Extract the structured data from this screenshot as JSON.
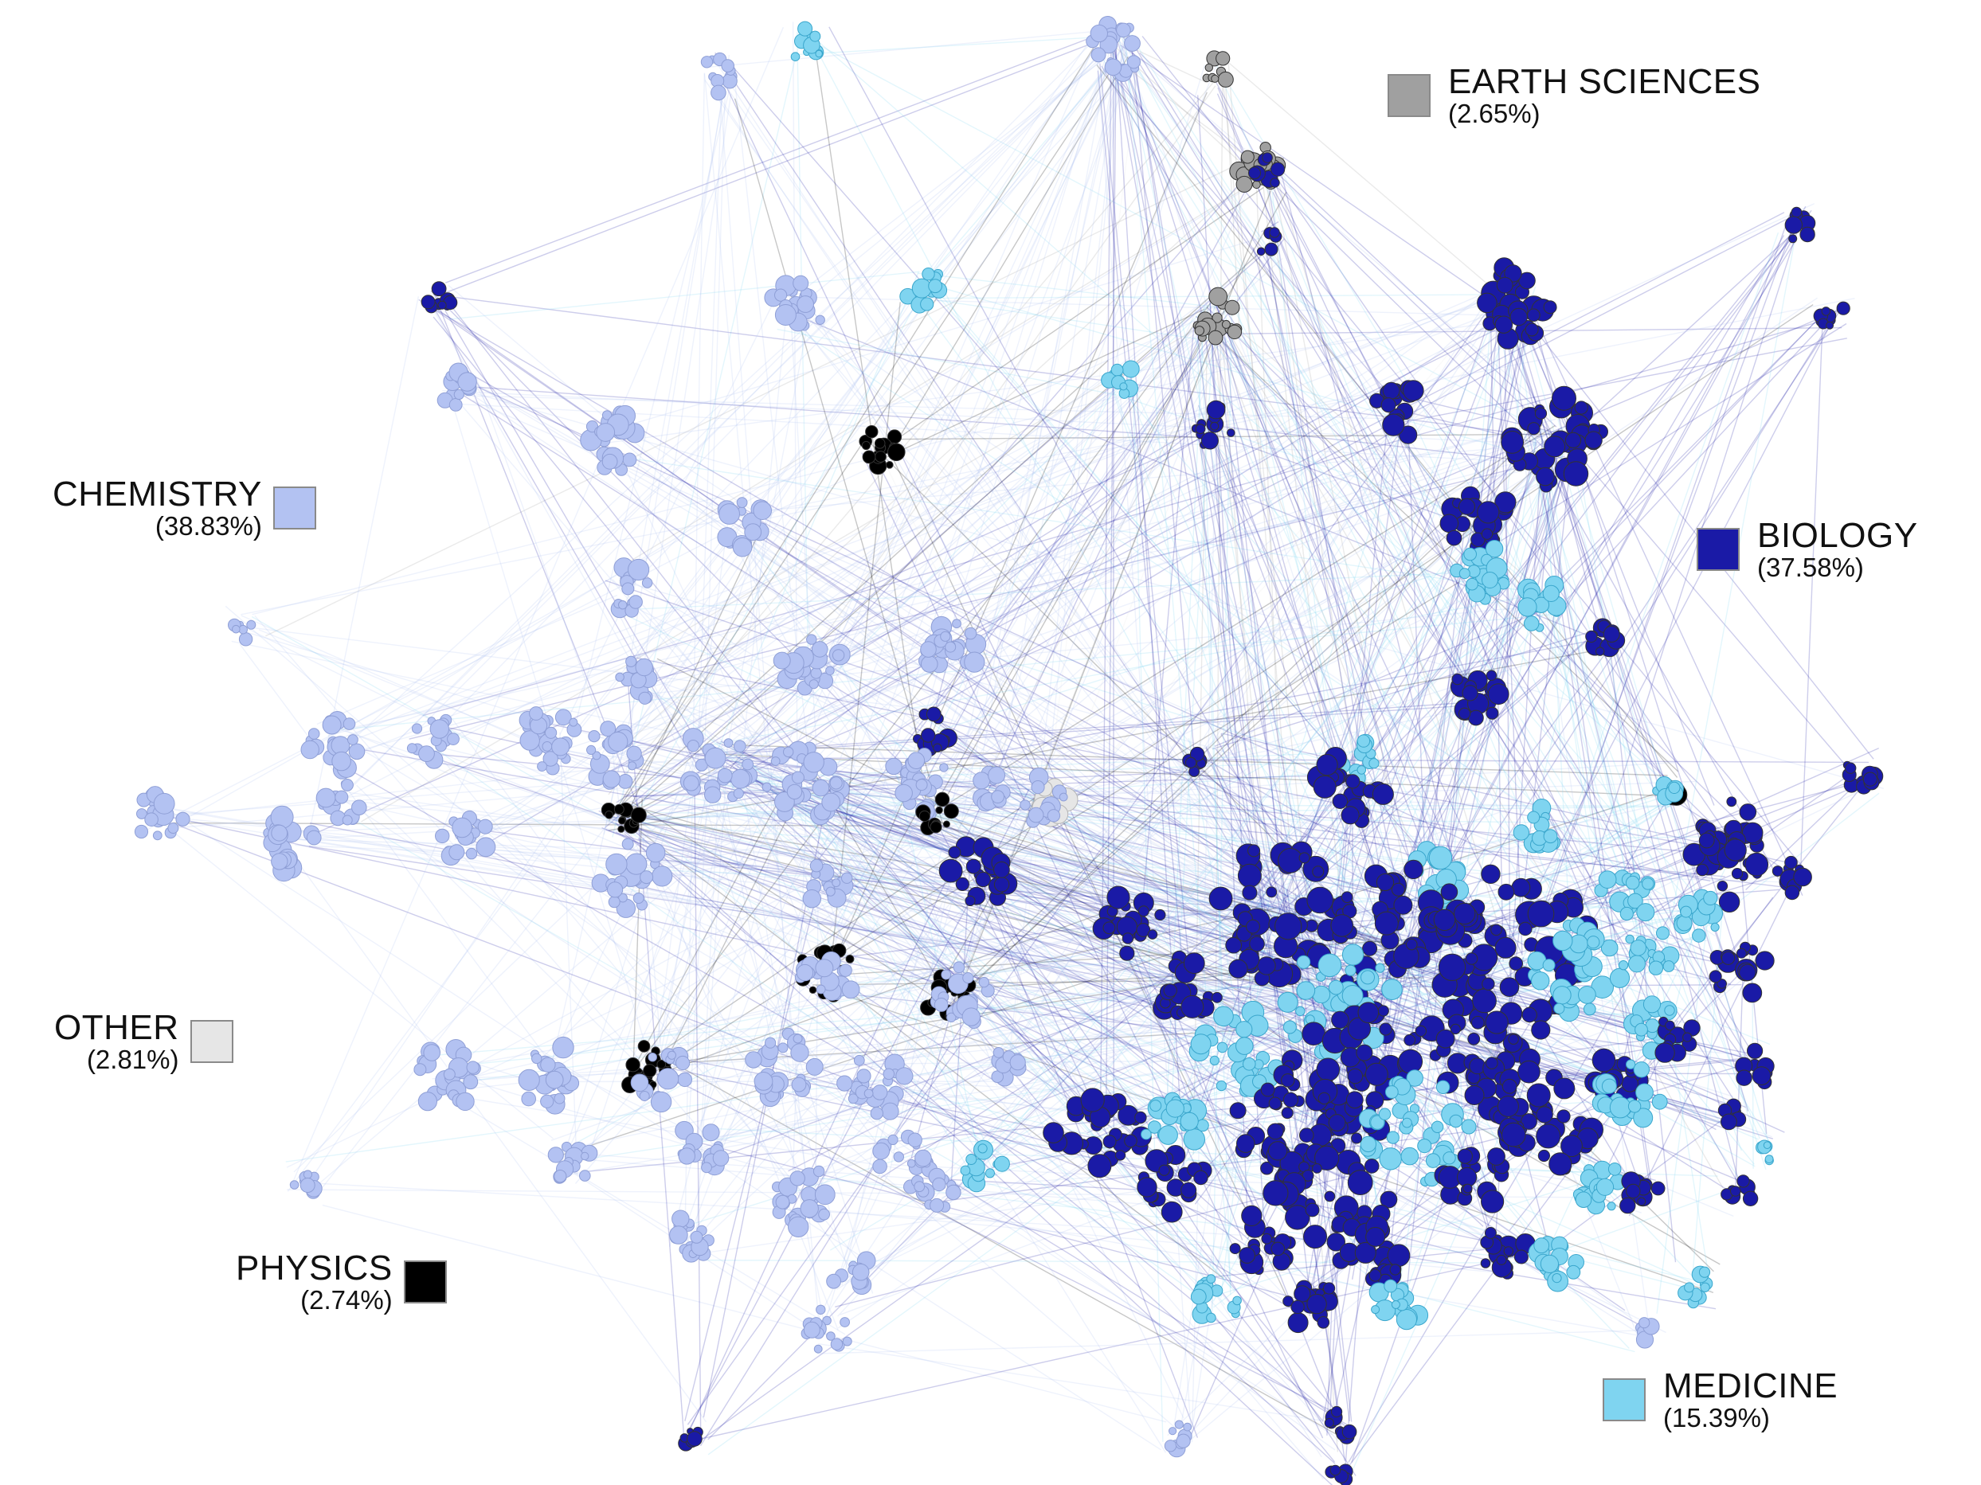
{
  "legend": [
    {
      "id": "earth",
      "name": "EARTH SCIENCES",
      "percent": "(2.65%)",
      "color": "#a0a0a0"
    },
    {
      "id": "chemistry",
      "name": "CHEMISTRY",
      "percent": "(38.83%)",
      "color": "#b3c2f2"
    },
    {
      "id": "biology",
      "name": "BIOLOGY",
      "percent": "(37.58%)",
      "color": "#1a1aa6"
    },
    {
      "id": "other",
      "name": "OTHER",
      "percent": "(2.81%)",
      "color": "#e6e6e6"
    },
    {
      "id": "physics",
      "name": "PHYSICS",
      "percent": "(2.74%)",
      "color": "#000000"
    },
    {
      "id": "medicine",
      "name": "MEDICINE",
      "percent": "(15.39%)",
      "color": "#7fd4f0"
    }
  ]
}
